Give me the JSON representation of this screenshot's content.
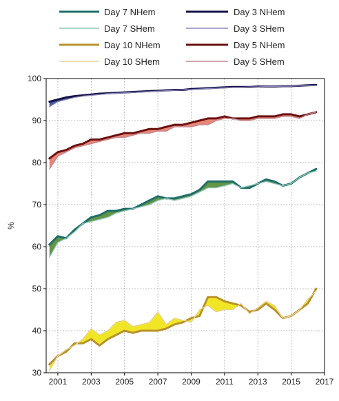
{
  "chart_data": {
    "type": "line",
    "title": "",
    "xlabel": "",
    "ylabel": "%",
    "xlim": [
      2000.3,
      2017
    ],
    "ylim": [
      30,
      100
    ],
    "x_ticks": [
      "2001",
      "2003",
      "2005",
      "2007",
      "2009",
      "2011",
      "2013",
      "2015",
      "2017"
    ],
    "y_ticks": [
      "30",
      "40",
      "50",
      "60",
      "70",
      "80",
      "90",
      "100"
    ],
    "grid": true,
    "legend_position": "top",
    "series": [
      {
        "name": "Day 7 NHem",
        "color": "#1e6e6a",
        "fill": "#5a8f3c",
        "x": [
          2000.5,
          2001,
          2001.5,
          2002,
          2002.5,
          2003,
          2003.5,
          2004,
          2004.5,
          2005,
          2005.5,
          2006,
          2006.5,
          2007,
          2007.5,
          2008,
          2008.5,
          2009,
          2009.5,
          2010,
          2010.5,
          2011,
          2011.5,
          2012,
          2012.5,
          2013,
          2013.5,
          2014,
          2014.5,
          2015,
          2015.5,
          2016,
          2016.5
        ],
        "values": [
          60.5,
          62.5,
          62,
          64,
          65.5,
          67,
          67.5,
          68.5,
          68.5,
          69,
          69,
          70,
          71,
          72,
          71.5,
          71.5,
          72,
          72.5,
          73.5,
          75.5,
          75.5,
          75.5,
          75.5,
          74,
          74,
          75,
          76,
          75.5,
          74.5,
          75,
          76.5,
          77.5,
          78.5
        ]
      },
      {
        "name": "Day 7 SHem",
        "color": "#8fc3b8",
        "fill": "#5a8f3c",
        "x": [
          2000.5,
          2001,
          2001.5,
          2002,
          2002.5,
          2003,
          2003.5,
          2004,
          2004.5,
          2005,
          2005.5,
          2006,
          2006.5,
          2007,
          2007.5,
          2008,
          2008.5,
          2009,
          2009.5,
          2010,
          2010.5,
          2011,
          2011.5,
          2012,
          2012.5,
          2013,
          2013.5,
          2014,
          2014.5,
          2015,
          2015.5,
          2016,
          2016.5
        ],
        "values": [
          57.5,
          61,
          62,
          63.5,
          65.5,
          66,
          66.5,
          67,
          68,
          68.5,
          69,
          69.5,
          70,
          71,
          71.5,
          71,
          71.5,
          72,
          73,
          74,
          74,
          74.5,
          75,
          74,
          74.5,
          75,
          75.5,
          75,
          74.5,
          75,
          76.5,
          77.5,
          78
        ]
      },
      {
        "name": "Day 3 NHem",
        "color": "#15124a",
        "fill": "#3a4a9a",
        "x": [
          2000.5,
          2001,
          2001.5,
          2002,
          2002.5,
          2003,
          2003.5,
          2004,
          2004.5,
          2005,
          2005.5,
          2006,
          2006.5,
          2007,
          2007.5,
          2008,
          2008.5,
          2009,
          2009.5,
          2010,
          2010.5,
          2011,
          2011.5,
          2012,
          2012.5,
          2013,
          2013.5,
          2014,
          2014.5,
          2015,
          2015.5,
          2016,
          2016.5
        ],
        "values": [
          94.5,
          95,
          95.5,
          95.8,
          96,
          96.2,
          96.4,
          96.5,
          96.6,
          96.7,
          96.8,
          96.9,
          97,
          97.1,
          97.2,
          97.3,
          97.3,
          97.5,
          97.6,
          97.7,
          97.8,
          97.9,
          98,
          98,
          98,
          98.1,
          98.1,
          98.1,
          98.2,
          98.2,
          98.3,
          98.4,
          98.5
        ]
      },
      {
        "name": "Day 3 SHem",
        "color": "#8c88b8",
        "fill": "#3a4a9a",
        "x": [
          2000.5,
          2001,
          2001.5,
          2002,
          2002.5,
          2003,
          2003.5,
          2004,
          2004.5,
          2005,
          2005.5,
          2006,
          2006.5,
          2007,
          2007.5,
          2008,
          2008.5,
          2009,
          2009.5,
          2010,
          2010.5,
          2011,
          2011.5,
          2012,
          2012.5,
          2013,
          2013.5,
          2014,
          2014.5,
          2015,
          2015.5,
          2016,
          2016.5
        ],
        "values": [
          93.3,
          94.5,
          95,
          95.5,
          95.8,
          96,
          96.2,
          96.4,
          96.5,
          96.6,
          96.7,
          96.8,
          96.9,
          97,
          97.1,
          97.2,
          97.3,
          97.4,
          97.5,
          97.6,
          97.7,
          97.8,
          97.9,
          97.9,
          98,
          98,
          98.1,
          98.1,
          98.2,
          98.2,
          98.3,
          98.3,
          98.4
        ]
      },
      {
        "name": "Day 10 NHem",
        "color": "#b8922a",
        "fill": "#f0e51a",
        "x": [
          2000.5,
          2001,
          2001.5,
          2002,
          2002.5,
          2003,
          2003.5,
          2004,
          2004.5,
          2005,
          2005.5,
          2006,
          2006.5,
          2007,
          2007.5,
          2008,
          2008.5,
          2009,
          2009.5,
          2010,
          2010.5,
          2011,
          2011.5,
          2012,
          2012.5,
          2013,
          2013.5,
          2014,
          2014.5,
          2015,
          2015.5,
          2016,
          2016.5
        ],
        "values": [
          32,
          34,
          35,
          37,
          37,
          38,
          36.5,
          38,
          39,
          40,
          39.5,
          40,
          40,
          40,
          40.5,
          41.5,
          42,
          43,
          43.5,
          48,
          48,
          47,
          46.5,
          46,
          44.5,
          45,
          46.5,
          45,
          43,
          43.5,
          45,
          46.5,
          50
        ]
      },
      {
        "name": "Day 10 SHem",
        "color": "#e7d49a",
        "fill": "#f0e51a",
        "x": [
          2000.5,
          2001,
          2001.5,
          2002,
          2002.5,
          2003,
          2003.5,
          2004,
          2004.5,
          2005,
          2005.5,
          2006,
          2006.5,
          2007,
          2007.5,
          2008,
          2008.5,
          2009,
          2009.5,
          2010,
          2010.5,
          2011,
          2011.5,
          2012,
          2012.5,
          2013,
          2013.5,
          2014,
          2014.5,
          2015,
          2015.5,
          2016,
          2016.5
        ],
        "values": [
          30.5,
          34,
          35.5,
          36.5,
          38,
          40.5,
          39,
          40,
          42,
          42.5,
          41,
          41.5,
          42,
          44.5,
          41.5,
          43,
          42.5,
          42,
          45,
          46,
          44.5,
          45,
          45,
          46.5,
          44,
          45.5,
          47,
          46,
          43,
          43.5,
          45,
          47.5,
          49.5
        ]
      },
      {
        "name": "Day 5 NHem",
        "color": "#6b1010",
        "fill": "#e88070",
        "x": [
          2000.5,
          2001,
          2001.5,
          2002,
          2002.5,
          2003,
          2003.5,
          2004,
          2004.5,
          2005,
          2005.5,
          2006,
          2006.5,
          2007,
          2007.5,
          2008,
          2008.5,
          2009,
          2009.5,
          2010,
          2010.5,
          2011,
          2011.5,
          2012,
          2012.5,
          2013,
          2013.5,
          2014,
          2014.5,
          2015,
          2015.5,
          2016,
          2016.5
        ],
        "values": [
          81,
          82.5,
          83,
          84,
          84.5,
          85.5,
          85.5,
          86,
          86.5,
          87,
          87,
          87.5,
          88,
          88,
          88.5,
          89,
          89,
          89.5,
          90,
          90.5,
          90.5,
          91,
          90.5,
          90.5,
          90.5,
          91,
          91,
          91,
          91.5,
          91.5,
          91,
          91.5,
          92
        ]
      },
      {
        "name": "Day 5 SHem",
        "color": "#c08890",
        "fill": "#e88070",
        "x": [
          2000.5,
          2001,
          2001.5,
          2002,
          2002.5,
          2003,
          2003.5,
          2004,
          2004.5,
          2005,
          2005.5,
          2006,
          2006.5,
          2007,
          2007.5,
          2008,
          2008.5,
          2009,
          2009.5,
          2010,
          2010.5,
          2011,
          2011.5,
          2012,
          2012.5,
          2013,
          2013.5,
          2014,
          2014.5,
          2015,
          2015.5,
          2016,
          2016.5
        ],
        "values": [
          78.5,
          81.5,
          82.5,
          83.5,
          84,
          84.5,
          85,
          85.5,
          86,
          86,
          86.5,
          87,
          87,
          87.5,
          87.5,
          88.5,
          88.5,
          88.5,
          89,
          89,
          90,
          90.5,
          90.5,
          90,
          90,
          90.5,
          90.5,
          90.5,
          91,
          91,
          90.5,
          91.5,
          92
        ]
      }
    ]
  }
}
